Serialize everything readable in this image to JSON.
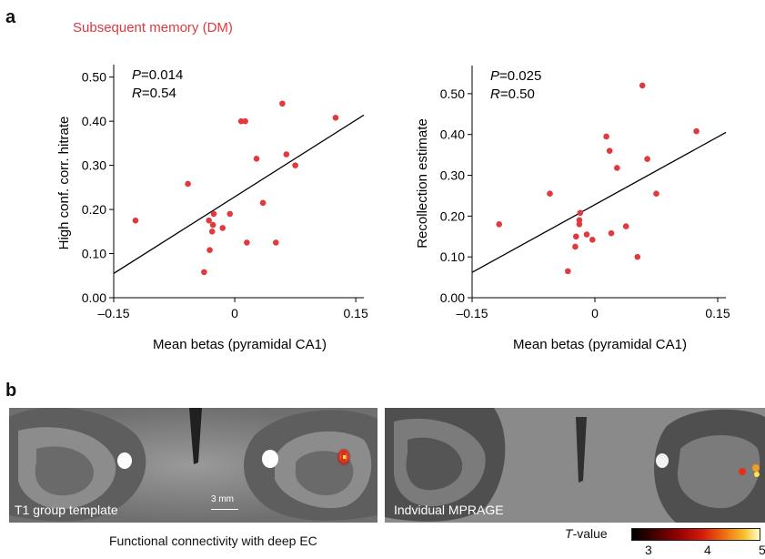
{
  "panel_a": {
    "letter": "a",
    "title": "Subsequent memory (DM)"
  },
  "panel_b": {
    "letter": "b",
    "left_image_label": "T1 group template",
    "scale_bar_label": "3 mm",
    "right_image_label": "Indvidual MPRAGE",
    "caption": "Functional connectivity with deep EC",
    "colorbar": {
      "label_italic": "T",
      "label_rest": "-value",
      "ticks": [
        "3",
        "4",
        "5"
      ]
    }
  },
  "colors": {
    "points": "#e0393e",
    "title_red": "#e0393e",
    "fit_line": "#000000"
  },
  "chart_data": [
    {
      "type": "scatter",
      "xlabel": "Mean betas (pyramidal CA1)",
      "ylabel": "High conf. corr. hitrate",
      "xlim": [
        -0.15,
        0.16
      ],
      "ylim": [
        0.0,
        0.52
      ],
      "xticks": [
        "–0.15",
        "0",
        "0.15"
      ],
      "yticks": [
        "0.00",
        "0.10",
        "0.20",
        "0.30",
        "0.40",
        "0.50"
      ],
      "annotation": {
        "p_label": "P",
        "p_value": "=0.014",
        "r_label": "R",
        "r_value": "=0.54"
      },
      "points": [
        [
          -0.123,
          0.175
        ],
        [
          -0.058,
          0.258
        ],
        [
          -0.038,
          0.058
        ],
        [
          -0.032,
          0.175
        ],
        [
          -0.031,
          0.108
        ],
        [
          -0.028,
          0.15
        ],
        [
          -0.027,
          0.165
        ],
        [
          -0.026,
          0.19
        ],
        [
          -0.015,
          0.158
        ],
        [
          -0.006,
          0.19
        ],
        [
          0.008,
          0.4
        ],
        [
          0.013,
          0.4
        ],
        [
          0.015,
          0.125
        ],
        [
          0.027,
          0.315
        ],
        [
          0.035,
          0.215
        ],
        [
          0.051,
          0.125
        ],
        [
          0.059,
          0.44
        ],
        [
          0.064,
          0.325
        ],
        [
          0.075,
          0.3
        ],
        [
          0.125,
          0.408
        ]
      ],
      "fit_line": [
        [
          -0.15,
          0.055
        ],
        [
          0.16,
          0.414
        ]
      ]
    },
    {
      "type": "scatter",
      "xlabel": "Mean betas (pyramidal CA1)",
      "ylabel": "Recollection estimate",
      "xlim": [
        -0.15,
        0.16
      ],
      "ylim": [
        0.0,
        0.56
      ],
      "xticks": [
        "–0.15",
        "0",
        "0.15"
      ],
      "yticks": [
        "0.00",
        "0.10",
        "0.20",
        "0.30",
        "0.40",
        "0.50"
      ],
      "annotation": {
        "p_label": "P",
        "p_value": "=0.025",
        "r_label": "R",
        "r_value": "=0.50"
      },
      "points": [
        [
          -0.117,
          0.18
        ],
        [
          -0.055,
          0.255
        ],
        [
          -0.033,
          0.065
        ],
        [
          -0.024,
          0.125
        ],
        [
          -0.023,
          0.15
        ],
        [
          -0.019,
          0.18
        ],
        [
          -0.019,
          0.19
        ],
        [
          -0.018,
          0.208
        ],
        [
          -0.01,
          0.155
        ],
        [
          -0.003,
          0.142
        ],
        [
          0.014,
          0.395
        ],
        [
          0.018,
          0.36
        ],
        [
          0.02,
          0.158
        ],
        [
          0.027,
          0.318
        ],
        [
          0.038,
          0.175
        ],
        [
          0.052,
          0.1
        ],
        [
          0.058,
          0.52
        ],
        [
          0.064,
          0.34
        ],
        [
          0.075,
          0.255
        ],
        [
          0.124,
          0.408
        ]
      ],
      "fit_line": [
        [
          -0.15,
          0.062
        ],
        [
          0.16,
          0.405
        ]
      ]
    }
  ]
}
